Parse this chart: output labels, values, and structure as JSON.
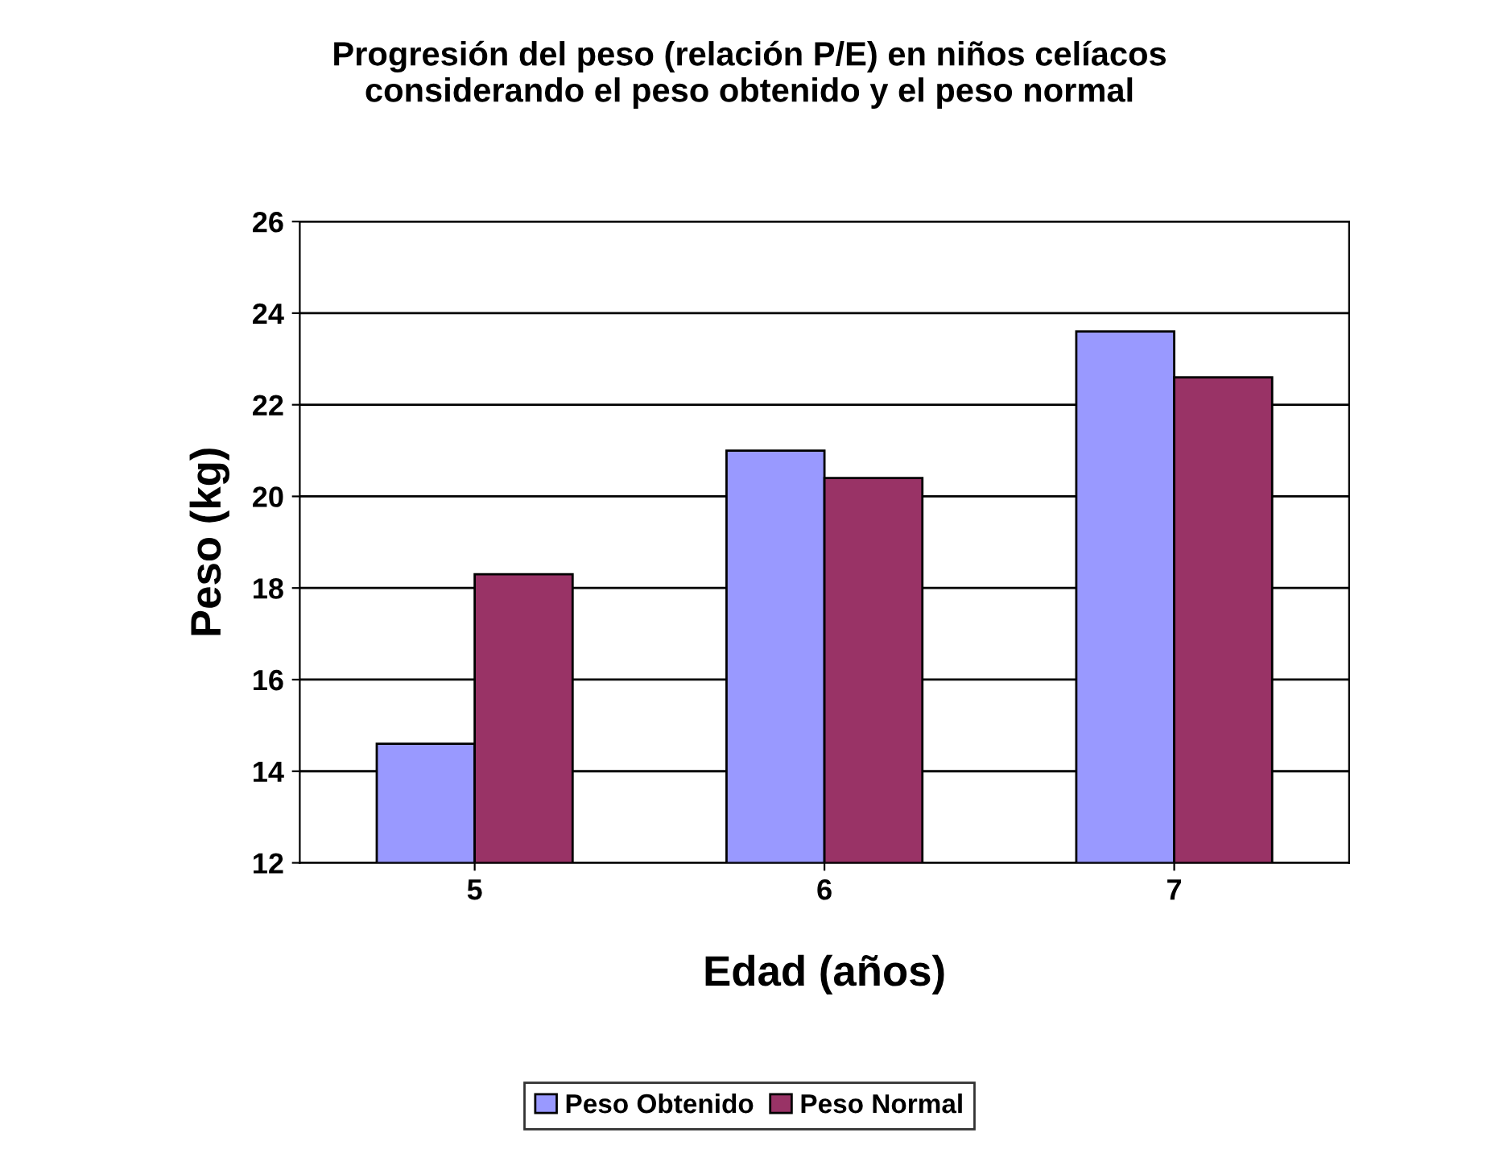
{
  "chart_data": {
    "type": "bar",
    "title": "Progresión del peso (relación P/E) en niños celíacos\nconsiderando el peso obtenido y el peso normal",
    "xlabel": "Edad (años)",
    "ylabel": "Peso (kg)",
    "categories": [
      "5",
      "6",
      "7"
    ],
    "series": [
      {
        "name": "Peso Obtenido",
        "color": "#9999ff",
        "values": [
          14.6,
          21.0,
          23.6
        ]
      },
      {
        "name": "Peso Normal",
        "color": "#993366",
        "values": [
          18.3,
          20.4,
          22.6
        ]
      }
    ],
    "ylim": [
      12,
      26
    ],
    "yticks": [
      12,
      14,
      16,
      18,
      20,
      22,
      24,
      26
    ],
    "grid": "y",
    "legend": "bottom"
  }
}
